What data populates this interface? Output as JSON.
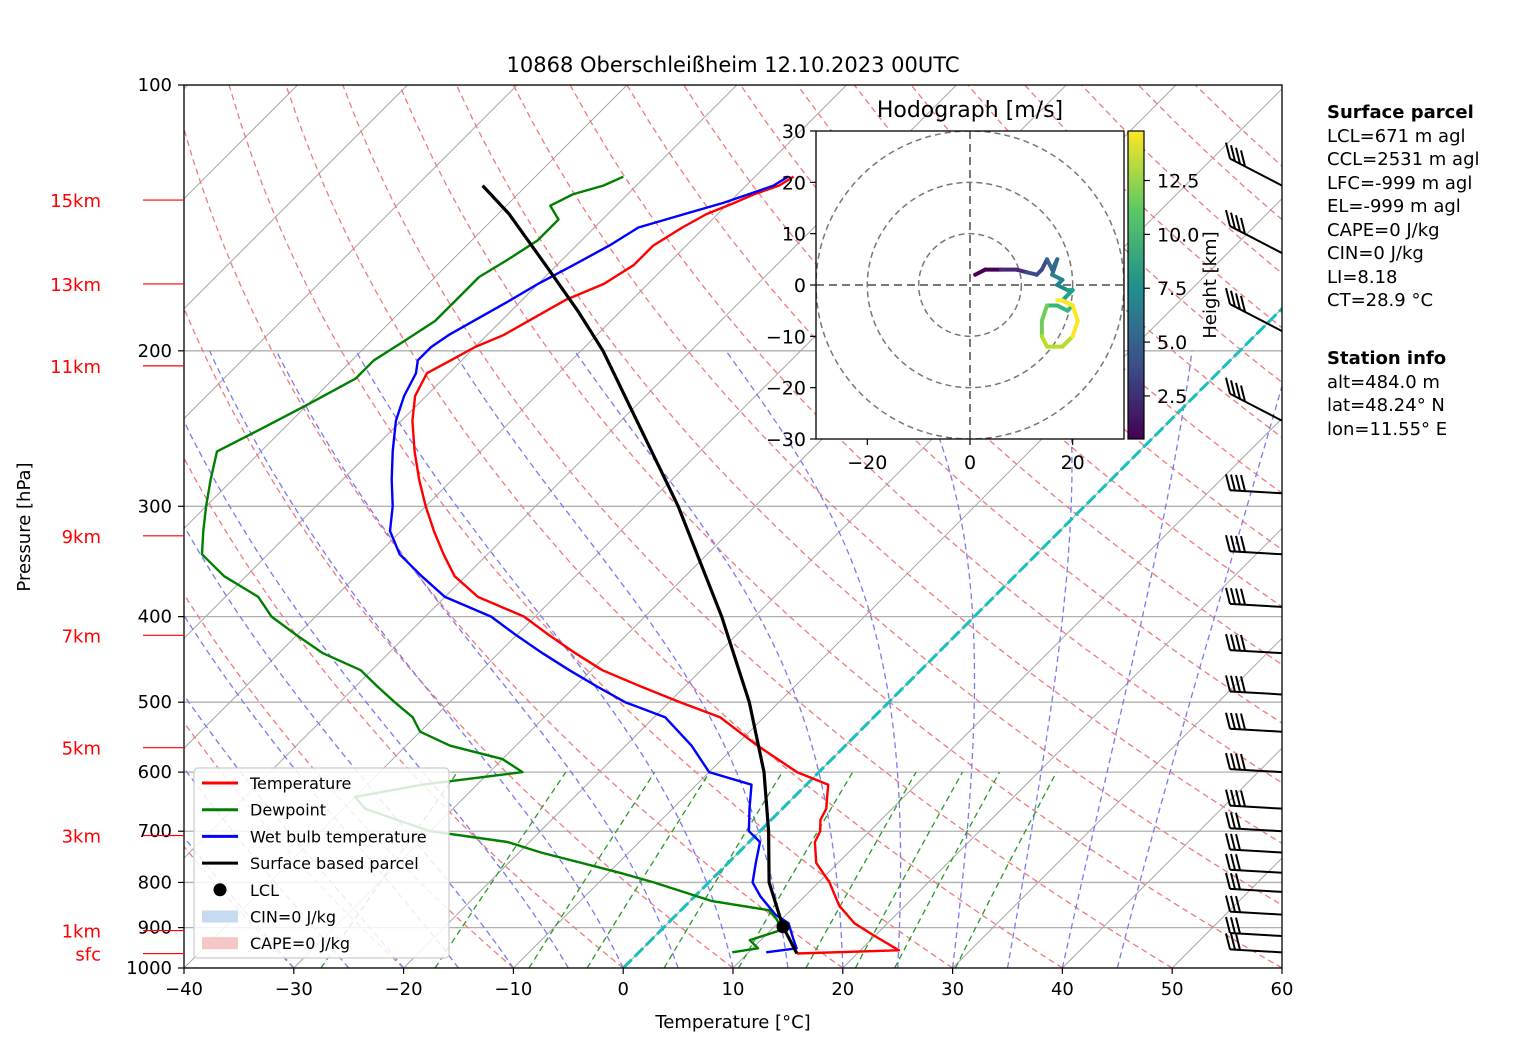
{
  "chart_data": {
    "type": "skew-t",
    "title": "10868 Oberschleißheim 12.10.2023 00UTC",
    "xlabel": "Temperature [°C]",
    "ylabel": "Pressure [hPa]",
    "xlim": [
      -40,
      60
    ],
    "ylim_pressure": [
      1000,
      100
    ],
    "x_ticks": [
      "−40",
      "−30",
      "−20",
      "−10",
      "0",
      "10",
      "20",
      "30",
      "40",
      "50",
      "60"
    ],
    "x_tick_values": [
      -40,
      -30,
      -20,
      -10,
      0,
      10,
      20,
      30,
      40,
      50,
      60
    ],
    "p_ticks": [
      "100",
      "200",
      "300",
      "400",
      "500",
      "600",
      "700",
      "800",
      "900",
      "1000"
    ],
    "p_tick_values": [
      100,
      200,
      300,
      400,
      500,
      600,
      700,
      800,
      900,
      1000
    ],
    "height_labels": [
      {
        "label": "15km",
        "p": 135
      },
      {
        "label": "13km",
        "p": 168
      },
      {
        "label": "11km",
        "p": 208
      },
      {
        "label": "9km",
        "p": 324
      },
      {
        "label": "7km",
        "p": 420
      },
      {
        "label": "5km",
        "p": 563
      },
      {
        "label": "3km",
        "p": 708
      },
      {
        "label": "1km",
        "p": 907
      },
      {
        "label": "sfc",
        "p": 963
      }
    ],
    "legend": {
      "placement": "lower-left",
      "entries": [
        {
          "label": "Temperature",
          "color": "#ff0000",
          "kind": "line"
        },
        {
          "label": "Dewpoint",
          "color": "#008000",
          "kind": "line"
        },
        {
          "label": "Wet bulb temperature",
          "color": "#0000ff",
          "kind": "line"
        },
        {
          "label": "Surface based parcel",
          "color": "#000000",
          "kind": "line"
        },
        {
          "label": "LCL",
          "color": "#000000",
          "kind": "dot"
        },
        {
          "label": "CIN=0 J/kg",
          "color": "#c6dbef",
          "kind": "patch"
        },
        {
          "label": "CAPE=0 J/kg",
          "color": "#f7c6c6",
          "kind": "patch"
        }
      ]
    },
    "series": [
      {
        "name": "Temperature",
        "color": "#ff0000",
        "points": [
          [
            14.5,
            963
          ],
          [
            23.5,
            955
          ],
          [
            20,
            920
          ],
          [
            17,
            890
          ],
          [
            14,
            850
          ],
          [
            11,
            800
          ],
          [
            8,
            760
          ],
          [
            6,
            720
          ],
          [
            5.5,
            700
          ],
          [
            4.5,
            680
          ],
          [
            4,
            660
          ],
          [
            3,
            640
          ],
          [
            2,
            620
          ],
          [
            -2,
            600
          ],
          [
            -8,
            560
          ],
          [
            -14,
            520
          ],
          [
            -19,
            500
          ],
          [
            -24,
            480
          ],
          [
            -29,
            460
          ],
          [
            -33,
            440
          ],
          [
            -37,
            420
          ],
          [
            -41,
            400
          ],
          [
            -47,
            380
          ],
          [
            -51,
            360
          ],
          [
            -54,
            340
          ],
          [
            -57,
            320
          ],
          [
            -60,
            300
          ],
          [
            -63,
            280
          ],
          [
            -66,
            260
          ],
          [
            -69,
            240
          ],
          [
            -71,
            225
          ],
          [
            -72,
            212
          ],
          [
            -71,
            205
          ],
          [
            -70,
            198
          ],
          [
            -68.5,
            192
          ],
          [
            -67.5,
            185
          ],
          [
            -66,
            175
          ],
          [
            -64,
            168
          ],
          [
            -63,
            160
          ],
          [
            -63,
            152
          ],
          [
            -62,
            145
          ],
          [
            -61,
            140
          ],
          [
            -59.5,
            136
          ],
          [
            -58.5,
            133
          ],
          [
            -57,
            130
          ],
          [
            -56.5,
            127
          ]
        ]
      },
      {
        "name": "Wet bulb temperature",
        "color": "#0000ff",
        "points": [
          [
            11.6,
            960
          ],
          [
            14,
            950
          ],
          [
            13,
            930
          ],
          [
            12,
            910
          ],
          [
            11,
            890
          ],
          [
            9,
            870
          ],
          [
            6,
            830
          ],
          [
            4,
            800
          ],
          [
            2.5,
            760
          ],
          [
            1,
            720
          ],
          [
            -1,
            700
          ],
          [
            -3,
            660
          ],
          [
            -5,
            620
          ],
          [
            -10,
            600
          ],
          [
            -14,
            560
          ],
          [
            -19,
            520
          ],
          [
            -24,
            500
          ],
          [
            -28,
            480
          ],
          [
            -32,
            460
          ],
          [
            -36,
            440
          ],
          [
            -40,
            420
          ],
          [
            -44,
            400
          ],
          [
            -50,
            380
          ],
          [
            -54,
            360
          ],
          [
            -58,
            340
          ],
          [
            -61,
            320
          ],
          [
            -63,
            300
          ],
          [
            -65.5,
            280
          ],
          [
            -68,
            260
          ],
          [
            -70.5,
            240
          ],
          [
            -72,
            225
          ],
          [
            -73,
            212
          ],
          [
            -74,
            205
          ],
          [
            -74,
            198
          ],
          [
            -73.5,
            192
          ],
          [
            -72.5,
            185
          ],
          [
            -71,
            175
          ],
          [
            -70,
            168
          ],
          [
            -68.5,
            160
          ],
          [
            -67,
            152
          ],
          [
            -66,
            145
          ],
          [
            -63,
            140
          ],
          [
            -60.5,
            136
          ],
          [
            -59,
            133
          ],
          [
            -57.5,
            130
          ],
          [
            -57,
            127
          ]
        ]
      },
      {
        "name": "Dewpoint",
        "color": "#008000",
        "points": [
          [
            8.5,
            960
          ],
          [
            10.5,
            950
          ],
          [
            9,
            930
          ],
          [
            11,
            905
          ],
          [
            9.5,
            880
          ],
          [
            8,
            860
          ],
          [
            2,
            840
          ],
          [
            -5,
            800
          ],
          [
            -9,
            780
          ],
          [
            -18,
            740
          ],
          [
            -22,
            720
          ],
          [
            -30,
            700
          ],
          [
            -34,
            680
          ],
          [
            -38,
            660
          ],
          [
            -40,
            640
          ],
          [
            -35,
            620
          ],
          [
            -27,
            600
          ],
          [
            -30,
            580
          ],
          [
            -36,
            560
          ],
          [
            -40,
            540
          ],
          [
            -42,
            520
          ],
          [
            -45,
            500
          ],
          [
            -48,
            480
          ],
          [
            -51,
            460
          ],
          [
            -56,
            440
          ],
          [
            -60,
            420
          ],
          [
            -64,
            400
          ],
          [
            -67,
            380
          ],
          [
            -72,
            360
          ],
          [
            -76,
            340
          ],
          [
            -78,
            320
          ],
          [
            -80,
            300
          ],
          [
            -82,
            280
          ],
          [
            -84,
            260
          ],
          [
            -82,
            245
          ],
          [
            -80,
            230
          ],
          [
            -78,
            215
          ],
          [
            -78,
            205
          ],
          [
            -77,
            195
          ],
          [
            -76,
            185
          ],
          [
            -76,
            175
          ],
          [
            -76,
            165
          ],
          [
            -75,
            158
          ],
          [
            -74,
            150
          ],
          [
            -74,
            142
          ],
          [
            -76,
            137
          ],
          [
            -75,
            133
          ],
          [
            -73,
            130
          ],
          [
            -72,
            127
          ]
        ]
      },
      {
        "name": "Surface based parcel",
        "color": "#000000",
        "points": [
          [
            14.5,
            963
          ],
          [
            10.8,
            898
          ],
          [
            5.5,
            800
          ],
          [
            0.8,
            700
          ],
          [
            -5,
            600
          ],
          [
            -12.7,
            500
          ],
          [
            -23,
            400
          ],
          [
            -37,
            300
          ],
          [
            -58,
            200
          ],
          [
            -64,
            180
          ],
          [
            -71,
            160
          ],
          [
            -79,
            140
          ],
          [
            -84,
            130
          ]
        ]
      }
    ],
    "lcl": {
      "t": 10.8,
      "p": 898
    },
    "hodograph": {
      "title": "Hodograph [m/s]",
      "xlim": [
        -30,
        30
      ],
      "ylim": [
        -30,
        30
      ],
      "x_ticks": [
        "−20",
        "0",
        "20"
      ],
      "x_tick_values": [
        -20,
        0,
        20
      ],
      "y_ticks": [
        "−30",
        "−20",
        "−10",
        "0",
        "10",
        "20",
        "30"
      ],
      "y_tick_values": [
        -30,
        -20,
        -10,
        0,
        10,
        20,
        30
      ],
      "rings": [
        10,
        20,
        30
      ],
      "colorbar_label": "Height [km]",
      "colorbar_ticks": [
        "2.5",
        "5.0",
        "7.5",
        "10.0",
        "12.5"
      ],
      "colorbar_tick_values": [
        2.5,
        5.0,
        7.5,
        10.0,
        12.5
      ],
      "colorbar_range": [
        0.5,
        14.8
      ],
      "points": [
        [
          1,
          2,
          0.5
        ],
        [
          3,
          3,
          0.9
        ],
        [
          6,
          3,
          1.5
        ],
        [
          9,
          3,
          2.2
        ],
        [
          11,
          2.5,
          2.8
        ],
        [
          13,
          2,
          3.4
        ],
        [
          14,
          3,
          4
        ],
        [
          15,
          5,
          4.5
        ],
        [
          16,
          3,
          5
        ],
        [
          17,
          5,
          5.4
        ],
        [
          16,
          2,
          6
        ],
        [
          18,
          1,
          6.5
        ],
        [
          17,
          0,
          7
        ],
        [
          19,
          -1,
          7.5
        ],
        [
          20,
          -1,
          8
        ],
        [
          18,
          -3,
          8.5
        ],
        [
          20,
          -4,
          9
        ],
        [
          19,
          -5,
          9.5
        ],
        [
          17,
          -4,
          10
        ],
        [
          15,
          -4,
          10.5
        ],
        [
          14,
          -7,
          11
        ],
        [
          14,
          -10,
          11.5
        ],
        [
          15,
          -12,
          12
        ],
        [
          18,
          -12,
          12.5
        ],
        [
          20,
          -10,
          13
        ],
        [
          21,
          -7,
          13.5
        ],
        [
          20,
          -4,
          14
        ],
        [
          18,
          -3,
          14.5
        ],
        [
          17,
          -3,
          14.8
        ]
      ]
    },
    "wind_barbs_p": [
      130,
      155,
      190,
      240,
      290,
      340,
      390,
      440,
      490,
      540,
      600,
      660,
      700,
      740,
      780,
      820,
      870,
      920,
      960
    ]
  },
  "info": {
    "surface_header": "Surface parcel",
    "surface_lines": [
      "LCL=671 m agl",
      "CCL=2531 m agl",
      "LFC=-999 m agl",
      "EL=-999 m agl",
      "CAPE=0 J/kg",
      "CIN=0 J/kg",
      "LI=8.18",
      "CT=28.9 °C"
    ],
    "station_header": "Station info",
    "station_lines": [
      "alt=484.0 m",
      "lat=48.24° N",
      "lon=11.55° E"
    ]
  }
}
